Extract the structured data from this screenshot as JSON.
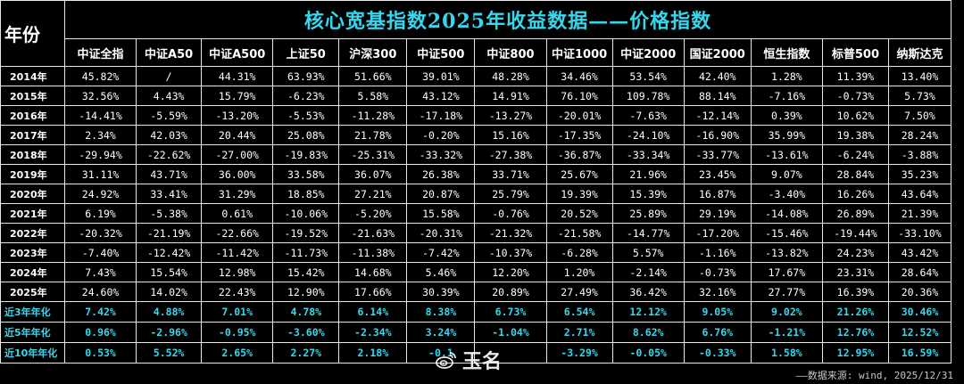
{
  "title": "核心宽基指数2025年收益数据——价格指数",
  "year_header": "年份",
  "columns": [
    "中证全指",
    "中证A50",
    "中证A500",
    "上证50",
    "沪深300",
    "中证500",
    "中证800",
    "中证1000",
    "中证2000",
    "国证2000",
    "恒生指数",
    "标普500",
    "纳斯达克"
  ],
  "rows": [
    {
      "year": "2014年",
      "values": [
        "45.82%",
        "/",
        "44.31%",
        "63.93%",
        "51.66%",
        "39.01%",
        "48.28%",
        "34.46%",
        "53.54%",
        "42.40%",
        "1.28%",
        "11.39%",
        "13.40%"
      ]
    },
    {
      "year": "2015年",
      "values": [
        "32.56%",
        "4.43%",
        "15.79%",
        "-6.23%",
        "5.58%",
        "43.12%",
        "14.91%",
        "76.10%",
        "109.78%",
        "88.14%",
        "-7.16%",
        "-0.73%",
        "5.73%"
      ]
    },
    {
      "year": "2016年",
      "values": [
        "-14.41%",
        "-5.59%",
        "-13.20%",
        "-5.53%",
        "-11.28%",
        "-17.18%",
        "-13.27%",
        "-20.01%",
        "-7.63%",
        "-12.14%",
        "0.39%",
        "10.62%",
        "7.50%"
      ]
    },
    {
      "year": "2017年",
      "values": [
        "2.34%",
        "42.03%",
        "20.44%",
        "25.08%",
        "21.78%",
        "-0.20%",
        "15.16%",
        "-17.35%",
        "-24.10%",
        "-16.90%",
        "35.99%",
        "19.38%",
        "28.24%"
      ]
    },
    {
      "year": "2018年",
      "values": [
        "-29.94%",
        "-22.62%",
        "-27.00%",
        "-19.83%",
        "-25.31%",
        "-33.32%",
        "-27.38%",
        "-36.87%",
        "-33.34%",
        "-33.77%",
        "-13.61%",
        "-6.24%",
        "-3.88%"
      ]
    },
    {
      "year": "2019年",
      "values": [
        "31.11%",
        "43.71%",
        "36.00%",
        "33.58%",
        "36.07%",
        "26.38%",
        "33.71%",
        "25.67%",
        "21.96%",
        "23.45%",
        "9.07%",
        "28.84%",
        "35.23%"
      ]
    },
    {
      "year": "2020年",
      "values": [
        "24.92%",
        "33.41%",
        "31.29%",
        "18.85%",
        "27.21%",
        "20.87%",
        "25.79%",
        "19.39%",
        "15.39%",
        "16.87%",
        "-3.40%",
        "16.26%",
        "43.64%"
      ]
    },
    {
      "year": "2021年",
      "values": [
        "6.19%",
        "-5.38%",
        "0.61%",
        "-10.06%",
        "-5.20%",
        "15.58%",
        "-0.76%",
        "20.52%",
        "25.89%",
        "29.19%",
        "-14.08%",
        "26.89%",
        "21.39%"
      ]
    },
    {
      "year": "2022年",
      "values": [
        "-20.32%",
        "-21.19%",
        "-22.66%",
        "-19.52%",
        "-21.63%",
        "-20.31%",
        "-21.32%",
        "-21.58%",
        "-14.77%",
        "-17.20%",
        "-15.46%",
        "-19.44%",
        "-33.10%"
      ]
    },
    {
      "year": "2023年",
      "values": [
        "-7.40%",
        "-12.42%",
        "-11.42%",
        "-11.73%",
        "-11.38%",
        "-7.42%",
        "-10.37%",
        "-6.28%",
        "5.57%",
        "-1.16%",
        "-13.82%",
        "24.23%",
        "43.42%"
      ]
    },
    {
      "year": "2024年",
      "values": [
        "7.43%",
        "15.54%",
        "12.98%",
        "15.42%",
        "14.68%",
        "5.46%",
        "12.20%",
        "1.20%",
        "-2.14%",
        "-0.73%",
        "17.67%",
        "23.31%",
        "28.64%"
      ]
    },
    {
      "year": "2025年",
      "values": [
        "24.60%",
        "14.02%",
        "22.43%",
        "12.90%",
        "17.66%",
        "30.39%",
        "20.89%",
        "27.49%",
        "36.42%",
        "32.16%",
        "27.77%",
        "16.39%",
        "20.36%"
      ]
    }
  ],
  "averages": [
    {
      "label": "近3年年化",
      "values": [
        "7.42%",
        "4.88%",
        "7.01%",
        "4.78%",
        "6.14%",
        "8.38%",
        "6.73%",
        "6.54%",
        "12.12%",
        "9.05%",
        "9.02%",
        "21.26%",
        "30.46%"
      ]
    },
    {
      "label": "近5年年化",
      "values": [
        "0.96%",
        "-2.96%",
        "-0.95%",
        "-3.60%",
        "-2.34%",
        "3.24%",
        "-1.04%",
        "2.71%",
        "8.62%",
        "6.76%",
        "-1.21%",
        "12.76%",
        "12.52%"
      ]
    },
    {
      "label": "近10年年化",
      "values": [
        "0.53%",
        "5.52%",
        "2.65%",
        "2.27%",
        "2.18%",
        "-0.1",
        "",
        "-3.29%",
        "-0.05%",
        "-0.33%",
        "1.58%",
        "12.95%",
        "16.59%"
      ]
    }
  ],
  "source": "——数据来源: wind, 2025/12/31",
  "watermark": "玉名",
  "colors": {
    "title": "#38d6ec",
    "accent": "#38d6ec",
    "background": "#000000",
    "grid": "#e8e8e8"
  }
}
